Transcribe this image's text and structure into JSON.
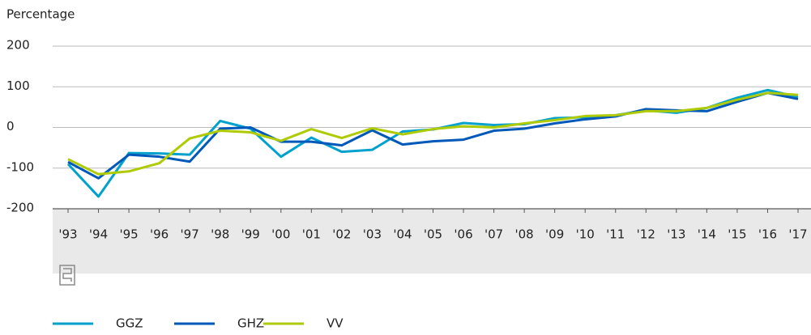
{
  "chart_data": {
    "type": "line",
    "y_label": "Percentage",
    "categories": [
      "'93",
      "'94",
      "'95",
      "'96",
      "'97",
      "'98",
      "'99",
      "'00",
      "'01",
      "'02",
      "'03",
      "'04",
      "'05",
      "'06",
      "'07",
      "'08",
      "'09",
      "'10",
      "'11",
      "'12",
      "'13",
      "'14",
      "'15",
      "'16",
      "'17"
    ],
    "series": [
      {
        "name": "GGZ",
        "color": "#00a1cd",
        "values": [
          -90,
          -170,
          -63,
          -64,
          -67,
          16,
          -3,
          -72,
          -25,
          -60,
          -55,
          -10,
          -5,
          11,
          6,
          8,
          23,
          25,
          30,
          42,
          36,
          48,
          73,
          92,
          75
        ]
      },
      {
        "name": "GHZ",
        "color": "#0058b8",
        "values": [
          -85,
          -125,
          -67,
          -72,
          -84,
          -3,
          0,
          -35,
          -35,
          -44,
          -7,
          -42,
          -34,
          -30,
          -8,
          -3,
          10,
          20,
          27,
          45,
          42,
          40,
          63,
          85,
          70
        ]
      },
      {
        "name": "VV",
        "color": "#afcb05",
        "values": [
          -78,
          -115,
          -108,
          -88,
          -27,
          -8,
          -12,
          -33,
          -4,
          -26,
          -2,
          -17,
          -4,
          3,
          0,
          10,
          18,
          28,
          30,
          40,
          40,
          48,
          68,
          85,
          80
        ]
      }
    ],
    "ylim": [
      -200,
      200
    ],
    "yticks": [
      -200,
      -100,
      0,
      100,
      200
    ],
    "grid": true
  }
}
